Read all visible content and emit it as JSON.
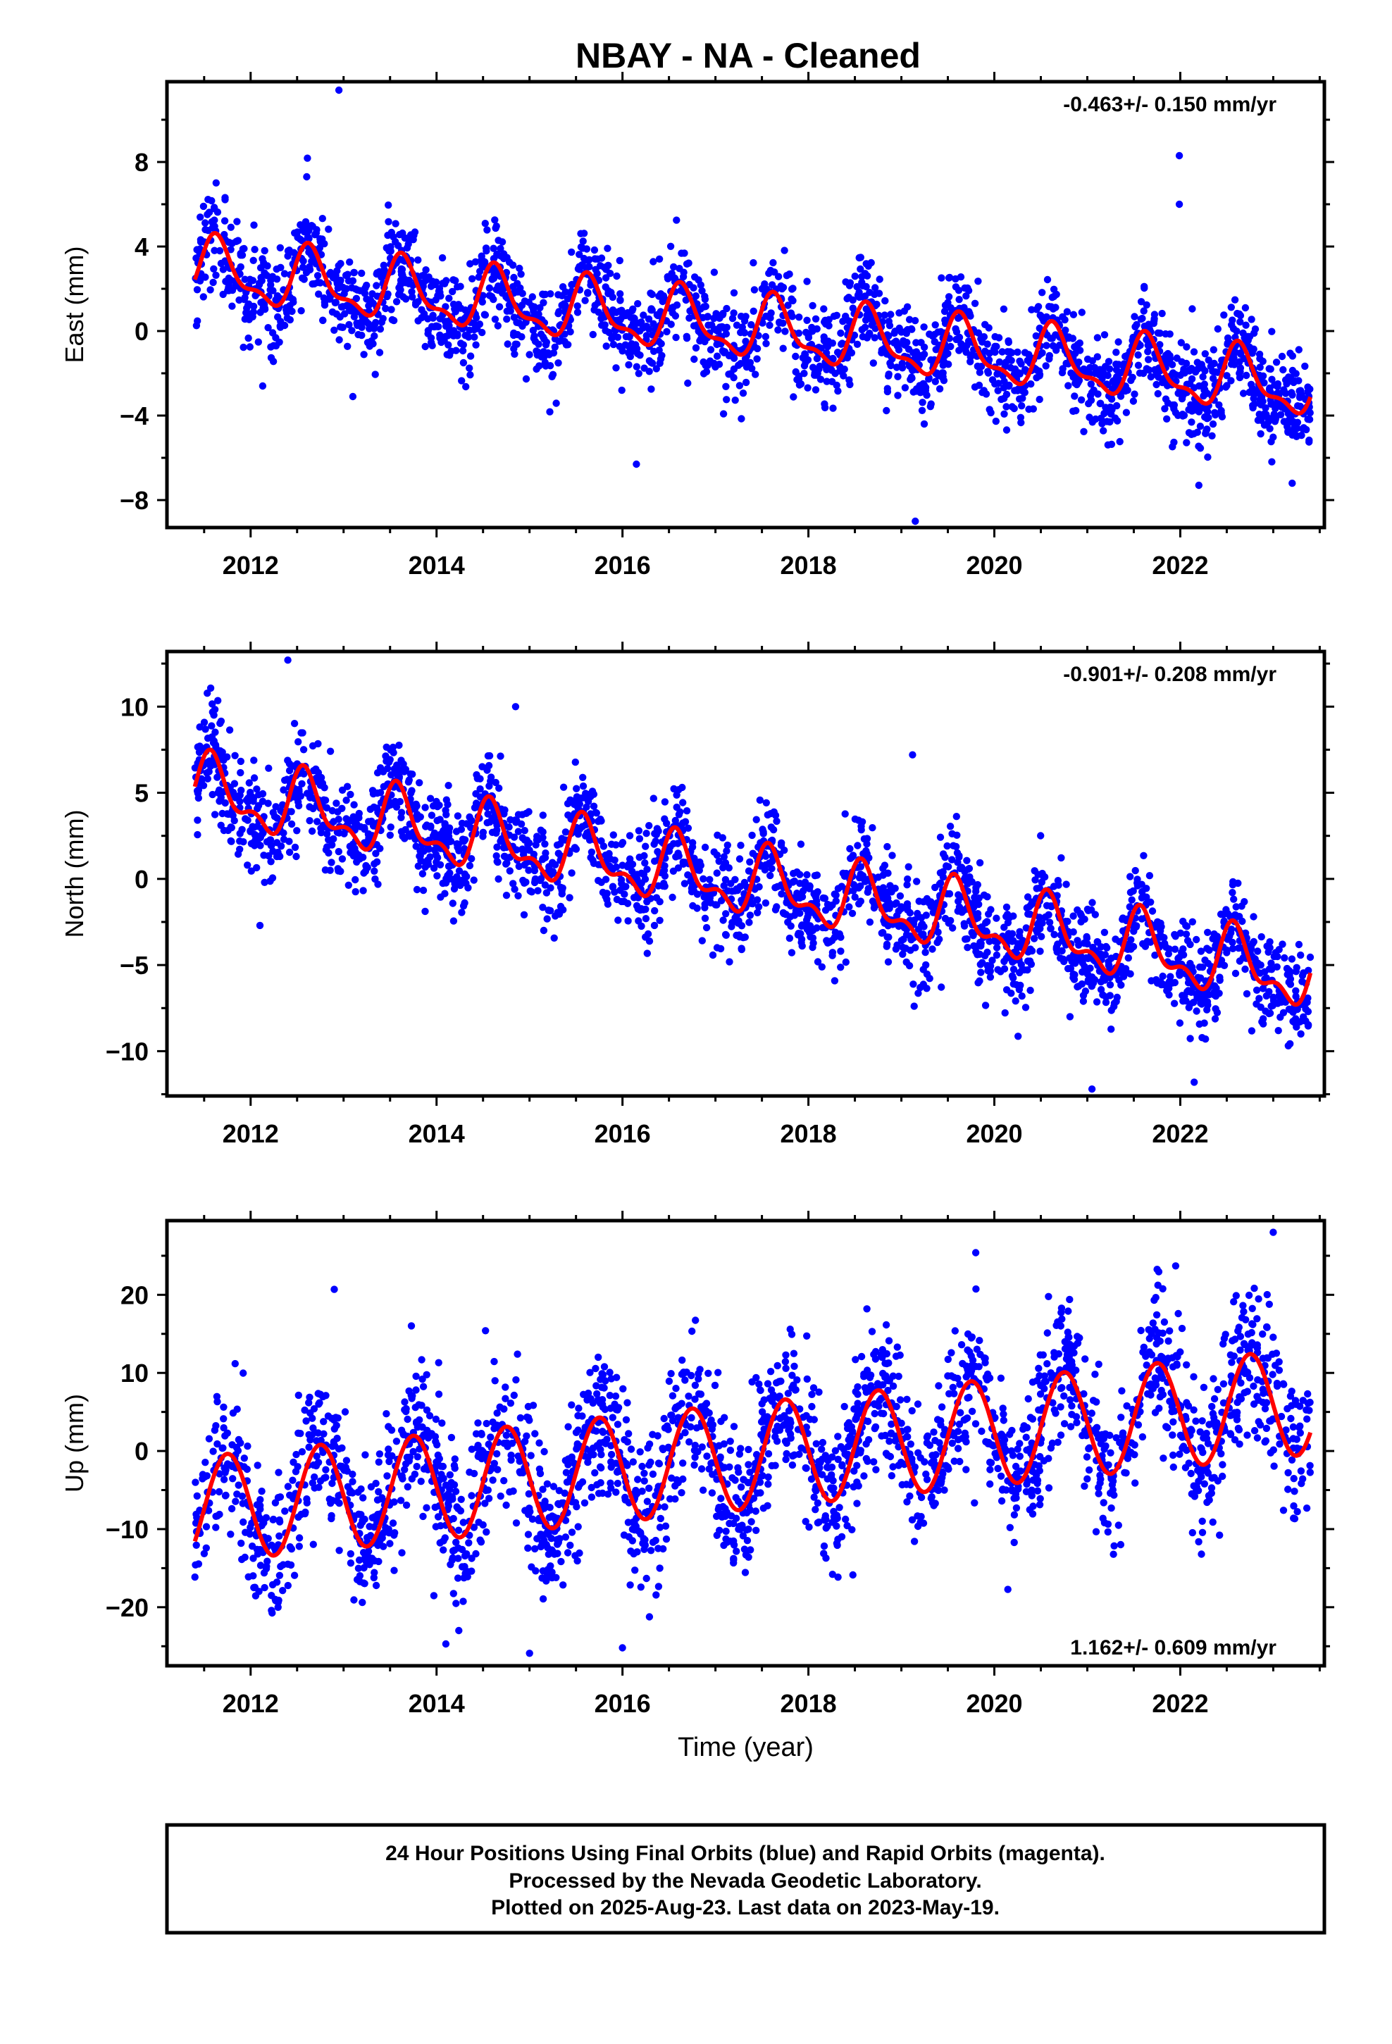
{
  "title": "NBAY  - NA - Cleaned",
  "footer": {
    "line1": "24 Hour Positions Using Final Orbits (blue) and Rapid Orbits (magenta).",
    "line2": "Processed by the Nevada Geodetic Laboratory.",
    "line3": "Plotted on 2025-Aug-23. Last data on 2023-May-19."
  },
  "colors": {
    "points": "#0000ff",
    "fit": "#ff0000",
    "frame": "#000000"
  },
  "chart_data": [
    {
      "type": "scatter",
      "ylabel": "East (mm)",
      "xlabel": "",
      "xlim": [
        2011.1,
        2023.55
      ],
      "ylim": [
        -9.3,
        11.8
      ],
      "xticks": [
        2012,
        2014,
        2016,
        2018,
        2020,
        2022
      ],
      "yticks": [
        -8,
        -4,
        0,
        4,
        8
      ],
      "rate_text": "-0.463+/- 0.150 mm/yr",
      "rate_position": "top-right",
      "fit_model": {
        "start": 2011.4,
        "end": 2023.4,
        "reference_year": 2017.4,
        "offset": 0.1,
        "slope": -0.463,
        "annual_amplitude": 1.35,
        "annual_peak_year": 2011.65,
        "semiannual_amplitude": 0.55,
        "semiannual_peak_year": 2011.6
      },
      "scatter_model": {
        "sigma": 1.15,
        "count": 2400
      },
      "outliers": [
        [
          2012.95,
          11.4
        ],
        [
          2021.99,
          8.3
        ],
        [
          2021.99,
          6.0
        ],
        [
          2019.15,
          -9.0
        ],
        [
          2016.15,
          -6.3
        ],
        [
          2012.13,
          -2.6
        ],
        [
          2013.1,
          -3.1
        ],
        [
          2022.2,
          -7.3
        ]
      ]
    },
    {
      "type": "scatter",
      "ylabel": "North (mm)",
      "xlabel": "",
      "xlim": [
        2011.1,
        2023.55
      ],
      "ylim": [
        -12.6,
        13.2
      ],
      "xticks": [
        2012,
        2014,
        2016,
        2018,
        2020,
        2022
      ],
      "yticks": [
        -10,
        -5,
        0,
        5,
        10
      ],
      "rate_text": "-0.901+/- 0.208 mm/yr",
      "rate_position": "top-right",
      "fit_model": {
        "start": 2011.4,
        "end": 2023.4,
        "reference_year": 2017.4,
        "offset": -0.3,
        "slope": -0.901,
        "annual_amplitude": 1.7,
        "annual_peak_year": 2011.6,
        "semiannual_amplitude": 0.9,
        "semiannual_peak_year": 2011.55
      },
      "scatter_model": {
        "sigma": 1.5,
        "count": 2400
      },
      "outliers": [
        [
          2012.4,
          12.7
        ],
        [
          2014.85,
          10.0
        ],
        [
          2019.12,
          7.2
        ],
        [
          2021.05,
          -12.2
        ],
        [
          2022.15,
          -11.8
        ],
        [
          2012.1,
          -2.7
        ]
      ]
    },
    {
      "type": "scatter",
      "ylabel": "Up (mm)",
      "xlabel": "Time (year)",
      "xlim": [
        2011.1,
        2023.55
      ],
      "ylim": [
        -27.5,
        29.5
      ],
      "xticks": [
        2012,
        2014,
        2016,
        2018,
        2020,
        2022
      ],
      "yticks": [
        -20,
        -10,
        0,
        10,
        20
      ],
      "rate_text": "1.162+/- 0.609 mm/yr",
      "rate_position": "bottom-right",
      "fit_model": {
        "start": 2011.4,
        "end": 2023.4,
        "reference_year": 2017.4,
        "offset": -0.6,
        "slope": 1.162,
        "annual_amplitude": 6.8,
        "annual_peak_year": 2011.75,
        "semiannual_amplitude": 0.0,
        "semiannual_peak_year": 2011.75
      },
      "scatter_model": {
        "sigma": 4.8,
        "count": 2400
      },
      "outliers": [
        [
          2012.9,
          20.7
        ],
        [
          2019.8,
          25.4
        ],
        [
          2021.95,
          23.7
        ],
        [
          2023.0,
          28.0
        ],
        [
          2015.0,
          -25.9
        ],
        [
          2016.0,
          -25.2
        ],
        [
          2014.1,
          -24.7
        ],
        [
          2012.15,
          -17.5
        ]
      ]
    }
  ]
}
